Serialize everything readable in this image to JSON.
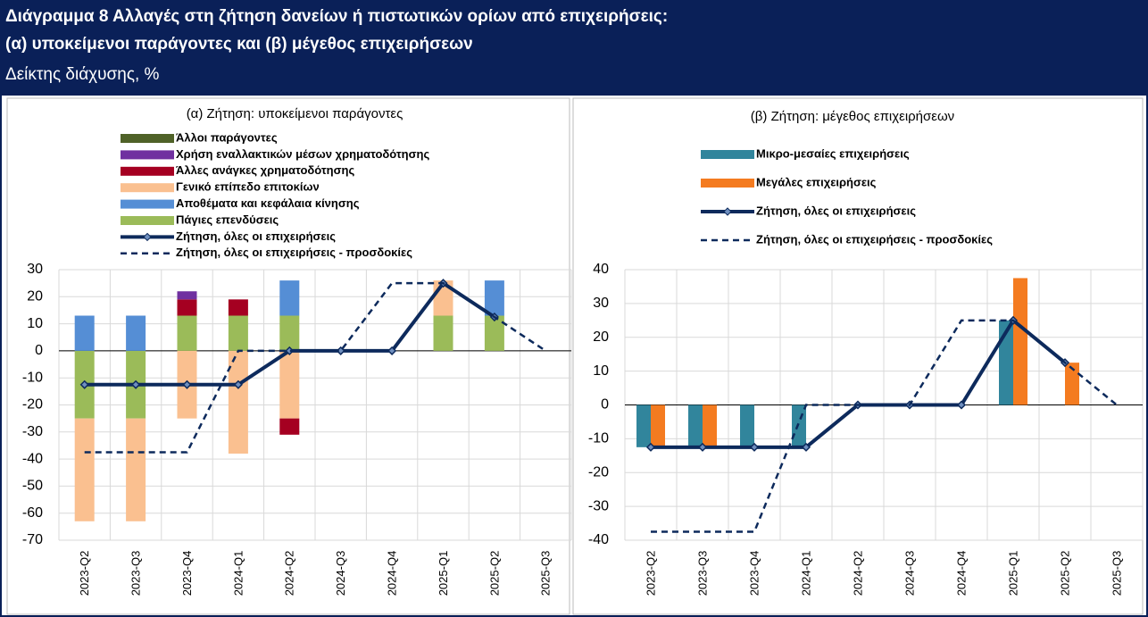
{
  "header": {
    "title": [
      "Διάγραμμα 8 Αλλαγές στη ζήτηση δανείων ή πιστωτικών ορίων από επιχειρήσεις:",
      "(α) υποκείμενοι παράγοντες και (β) μέγεθος επιχειρήσεων"
    ],
    "subtitle": "Δείκτης διάχυσης, %"
  },
  "chart_data": [
    {
      "type": "bar",
      "stacked": true,
      "title": "(α) Ζήτηση: υποκείμενοι παράγοντες",
      "categories": [
        "2023-Q2",
        "2023-Q3",
        "2023-Q4",
        "2024-Q1",
        "2024-Q2",
        "2024-Q3",
        "2024-Q4",
        "2025-Q1",
        "2025-Q2",
        "2025-Q3"
      ],
      "ylim": [
        -70,
        30
      ],
      "yticks": [
        -70,
        -60,
        -50,
        -40,
        -30,
        -20,
        -10,
        0,
        10,
        20,
        30
      ],
      "grid": true,
      "series": [
        {
          "name": "Άλλοι παράγοντες",
          "kind": "bar",
          "color": "#4f6228",
          "values": [
            null,
            null,
            null,
            null,
            null,
            null,
            null,
            null,
            null,
            null
          ]
        },
        {
          "name": "Χρήση εναλλακτικών μέσων χρηματοδότησης",
          "kind": "bar",
          "color": "#7030a0",
          "values": [
            null,
            null,
            3,
            null,
            null,
            null,
            null,
            null,
            null,
            null
          ]
        },
        {
          "name": "Άλλες ανάγκες χρηματοδότησης",
          "kind": "bar",
          "color": "#a50021",
          "values": [
            null,
            null,
            6,
            6,
            -6,
            null,
            null,
            null,
            null,
            null
          ]
        },
        {
          "name": "Γενικό επίπεδο επιτοκίων",
          "kind": "bar",
          "color": "#fac090",
          "values": [
            -38,
            -38,
            -25,
            -38,
            -25,
            null,
            null,
            13,
            null,
            null
          ]
        },
        {
          "name": "Αποθέματα και κεφάλαια κίνησης",
          "kind": "bar",
          "color": "#558ed5",
          "values": [
            13,
            13,
            null,
            null,
            13,
            null,
            null,
            null,
            13,
            null
          ]
        },
        {
          "name": "Πάγιες επενδύσεις",
          "kind": "bar",
          "color": "#9bbb59",
          "values": [
            -25,
            -25,
            13,
            13,
            13,
            null,
            null,
            13,
            13,
            null
          ]
        },
        {
          "name": "Ζήτηση, όλες οι επιχειρήσεις",
          "kind": "line",
          "color": "#0d2a5c",
          "values": [
            -12.5,
            -12.5,
            -12.5,
            -12.5,
            0,
            0,
            0,
            25,
            12.5,
            null
          ]
        },
        {
          "name": "Ζήτηση, όλες οι επιχειρήσεις - προσδοκίες",
          "kind": "dashed",
          "color": "#0d2a5c",
          "values": [
            -37.5,
            -37.5,
            -37.5,
            0,
            0,
            0,
            25,
            25,
            12.5,
            0
          ]
        }
      ]
    },
    {
      "type": "bar",
      "stacked": false,
      "title": "(β) Ζήτηση: μέγεθος επιχειρήσεων",
      "categories": [
        "2023-Q2",
        "2023-Q3",
        "2023-Q4",
        "2024-Q1",
        "2024-Q2",
        "2024-Q3",
        "2024-Q4",
        "2025-Q1",
        "2025-Q2",
        "2025-Q3"
      ],
      "ylim": [
        -40,
        40
      ],
      "yticks": [
        -40,
        -30,
        -20,
        -10,
        0,
        10,
        20,
        30,
        40
      ],
      "grid": true,
      "series": [
        {
          "name": "Μικρο-μεσαίες επιχειρήσεις",
          "kind": "bar",
          "color": "#31859c",
          "values": [
            -12.5,
            -12.5,
            -12.5,
            -12.5,
            0,
            0,
            0,
            25,
            null,
            null
          ]
        },
        {
          "name": "Μεγάλες επιχειρήσεις",
          "kind": "bar",
          "color": "#f47b20",
          "values": [
            -12.5,
            -12.5,
            null,
            null,
            0,
            0,
            0,
            37.5,
            12.5,
            null
          ]
        },
        {
          "name": "Ζήτηση, όλες οι επιχειρήσεις",
          "kind": "line",
          "color": "#0d2a5c",
          "values": [
            -12.5,
            -12.5,
            -12.5,
            -12.5,
            0,
            0,
            0,
            25,
            12.5,
            null
          ]
        },
        {
          "name": "Ζήτηση, όλες οι επιχειρήσεις - προσδοκίες",
          "kind": "dashed",
          "color": "#0d2a5c",
          "values": [
            -37.5,
            -37.5,
            -37.5,
            0,
            0,
            0,
            25,
            25,
            12.5,
            0
          ]
        }
      ]
    }
  ]
}
